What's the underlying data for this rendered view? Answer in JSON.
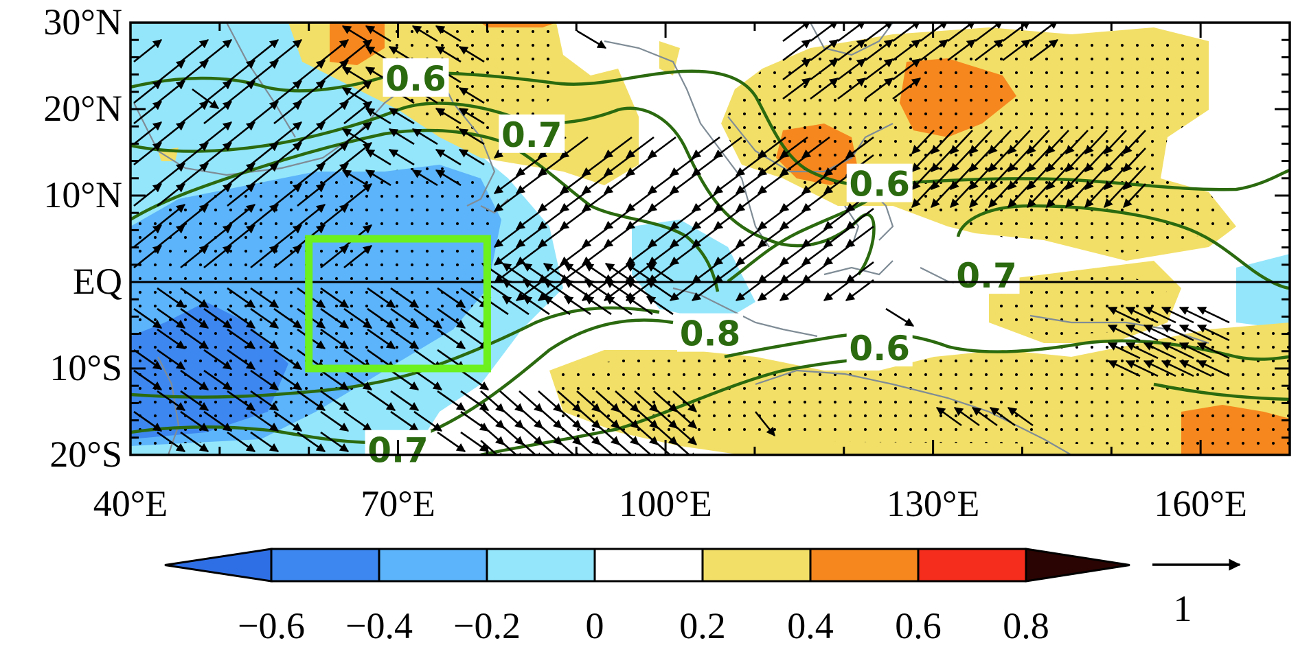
{
  "map": {
    "lat_ticks": [
      {
        "value": 30,
        "label": "30°N"
      },
      {
        "value": 20,
        "label": "20°N"
      },
      {
        "value": 10,
        "label": "10°N"
      },
      {
        "value": 0,
        "label": "EQ"
      },
      {
        "value": -10,
        "label": "10°S"
      },
      {
        "value": -20,
        "label": "20°S"
      }
    ],
    "lon_ticks": [
      {
        "value": 40,
        "label": "40°E"
      },
      {
        "value": 70,
        "label": "70°E"
      },
      {
        "value": 100,
        "label": "100°E"
      },
      {
        "value": 130,
        "label": "130°E"
      },
      {
        "value": 160,
        "label": "160°E"
      }
    ],
    "lon_range": [
      40,
      170
    ],
    "lat_range": [
      -20,
      30
    ],
    "box": {
      "lon": [
        60,
        80
      ],
      "lat": [
        -10,
        5
      ],
      "color": "#6cf01e"
    },
    "contour_color": "#2b6a0f",
    "contour_labels": [
      {
        "text": "0.6",
        "lon": 72,
        "lat": 23.5
      },
      {
        "text": "0.7",
        "lon": 85,
        "lat": 17
      },
      {
        "text": "0.6",
        "lon": 124,
        "lat": 11.3
      },
      {
        "text": "0.7",
        "lon": 136,
        "lat": 0.7
      },
      {
        "text": "0.8",
        "lon": 105,
        "lat": -6
      },
      {
        "text": "0.6",
        "lon": 124,
        "lat": -7.7
      },
      {
        "text": "0.7",
        "lon": 70,
        "lat": -19.5
      }
    ]
  },
  "chart_data": {
    "type": "heatmap",
    "description_type": "filled contour map with wind vectors and correlation contours",
    "x_axis": {
      "range": [
        40,
        170
      ],
      "ticks": [
        "40°E",
        "70°E",
        "100°E",
        "130°E",
        "160°E"
      ]
    },
    "y_axis": {
      "range": [
        -20,
        30
      ],
      "ticks": [
        "30°N",
        "20°N",
        "10°N",
        "EQ",
        "10°S",
        "20°S"
      ]
    },
    "colorbar": {
      "levels": [
        "−0.6",
        "−0.4",
        "−0.2",
        "0",
        "0.2",
        "0.4",
        "0.6",
        "0.8"
      ],
      "colors": [
        "#2f6fe6",
        "#3d87f0",
        "#5cb4fa",
        "#94e6fb",
        "#ffffff",
        "#f2df67",
        "#f6871e",
        "#f52d1c",
        "#2a0402"
      ]
    },
    "contour_values": [
      "0.6",
      "0.7",
      "0.8"
    ],
    "reference_vector": {
      "label": "1"
    },
    "highlight_box": {
      "lon": [
        60,
        80
      ],
      "lat": [
        -10,
        5
      ]
    }
  }
}
